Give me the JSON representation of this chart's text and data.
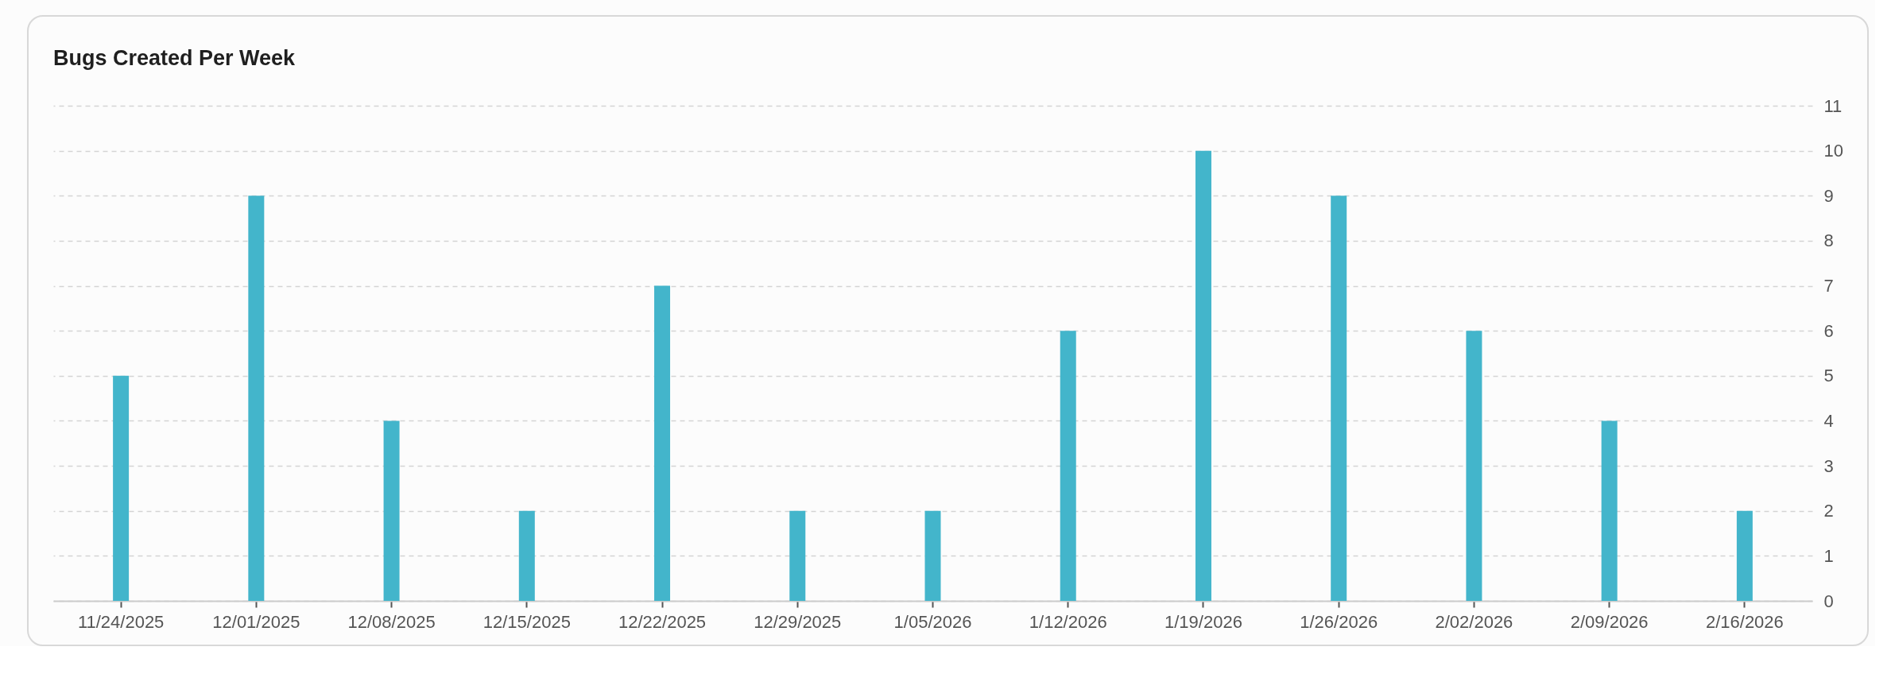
{
  "chart_data": {
    "type": "bar",
    "title": "Bugs Created Per Week",
    "categories": [
      "11/24/2025",
      "12/01/2025",
      "12/08/2025",
      "12/15/2025",
      "12/22/2025",
      "12/29/2025",
      "1/05/2026",
      "1/12/2026",
      "1/19/2026",
      "1/26/2026",
      "2/02/2026",
      "2/09/2026",
      "2/16/2026"
    ],
    "series": [
      {
        "color": "#43b5cb",
        "values": [
          5,
          9,
          4,
          2,
          7,
          2,
          2,
          6,
          10,
          9,
          6,
          4,
          2
        ]
      }
    ],
    "ylim": [
      0,
      11
    ],
    "yticks": [
      0,
      1,
      2,
      3,
      4,
      5,
      6,
      7,
      8,
      9,
      10,
      11
    ],
    "grid": "y",
    "legend": false
  }
}
